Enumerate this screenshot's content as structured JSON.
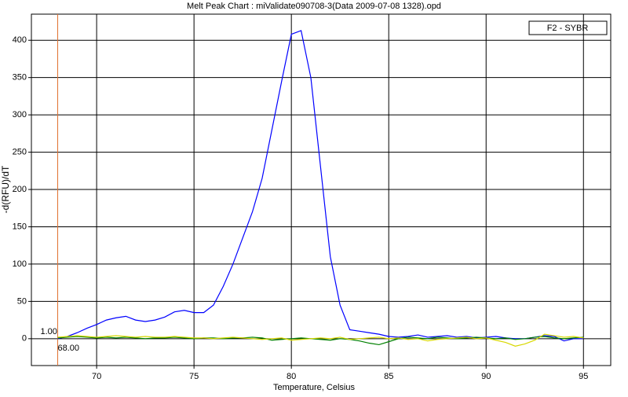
{
  "chart_data": {
    "type": "line",
    "title": "Melt Peak Chart : miValidate090708-3(Data 2009-07-08 1328).opd",
    "x_label": "Temperature, Celsius",
    "y_label": "-d(RFU)/dT",
    "legend_title": "F2 - SYBR",
    "legend_position": "upper right",
    "grid": true,
    "x": [
      68,
      68.5,
      69,
      69.5,
      70,
      70.5,
      71,
      71.5,
      72,
      72.5,
      73,
      73.5,
      74,
      74.5,
      75,
      75.5,
      76,
      76.5,
      77,
      77.5,
      78,
      78.5,
      79,
      79.5,
      80,
      80.5,
      81,
      81.5,
      82,
      82.5,
      83,
      83.5,
      84,
      84.5,
      85,
      85.5,
      86,
      86.5,
      87,
      87.5,
      88,
      88.5,
      89,
      89.5,
      90,
      90.5,
      91,
      91.5,
      92,
      92.5,
      93,
      93.5,
      94,
      94.5,
      95
    ],
    "series": [
      {
        "color": "#0000ff",
        "values": [
          0,
          3,
          8,
          14,
          19,
          25,
          28,
          30,
          25,
          23,
          25,
          29,
          36,
          38,
          35,
          35,
          45,
          70,
          100,
          135,
          170,
          215,
          280,
          345,
          408,
          413,
          350,
          230,
          110,
          45,
          12,
          10,
          8,
          6,
          3,
          2,
          3,
          5,
          2,
          3,
          4,
          2,
          3,
          1,
          2,
          3,
          1,
          0,
          0,
          2,
          4,
          3,
          -3,
          0,
          0
        ]
      },
      {
        "color": "#008000",
        "values": [
          1,
          2,
          3,
          2,
          1,
          2,
          1,
          2,
          1,
          0,
          1,
          1,
          2,
          1,
          0,
          1,
          1,
          0,
          1,
          1,
          2,
          1,
          -2,
          -1,
          0,
          1,
          0,
          -1,
          -2,
          0,
          -1,
          -3,
          -6,
          -8,
          -4,
          0,
          2,
          1,
          0,
          2,
          1,
          0,
          1,
          2,
          1,
          0,
          1,
          -1,
          0,
          2,
          3,
          1,
          0,
          1,
          2
        ]
      },
      {
        "color": "#d8d800",
        "values": [
          2,
          3,
          4,
          3,
          2,
          3,
          4,
          3,
          2,
          3,
          2,
          2,
          3,
          2,
          1,
          1,
          0,
          1,
          2,
          1,
          0,
          -1,
          0,
          1,
          -2,
          -1,
          0,
          1,
          0,
          2,
          -1,
          0,
          1,
          2,
          0,
          1,
          -1,
          0,
          -3,
          -1,
          0,
          1,
          2,
          0,
          1,
          -2,
          -5,
          -10,
          -7,
          -2,
          6,
          4,
          2,
          3,
          1
        ]
      }
    ],
    "xlim": [
      66.65,
      96.4
    ],
    "xticks": [
      70,
      75,
      80,
      85,
      90,
      95
    ],
    "ylim": [
      -36,
      435
    ],
    "yticks": [
      0,
      50,
      100,
      150,
      200,
      250,
      300,
      350,
      400
    ],
    "cursor": {
      "x": {
        "value": 68,
        "label": "68.00"
      },
      "y": {
        "value": 1,
        "label": "1.00"
      }
    }
  }
}
